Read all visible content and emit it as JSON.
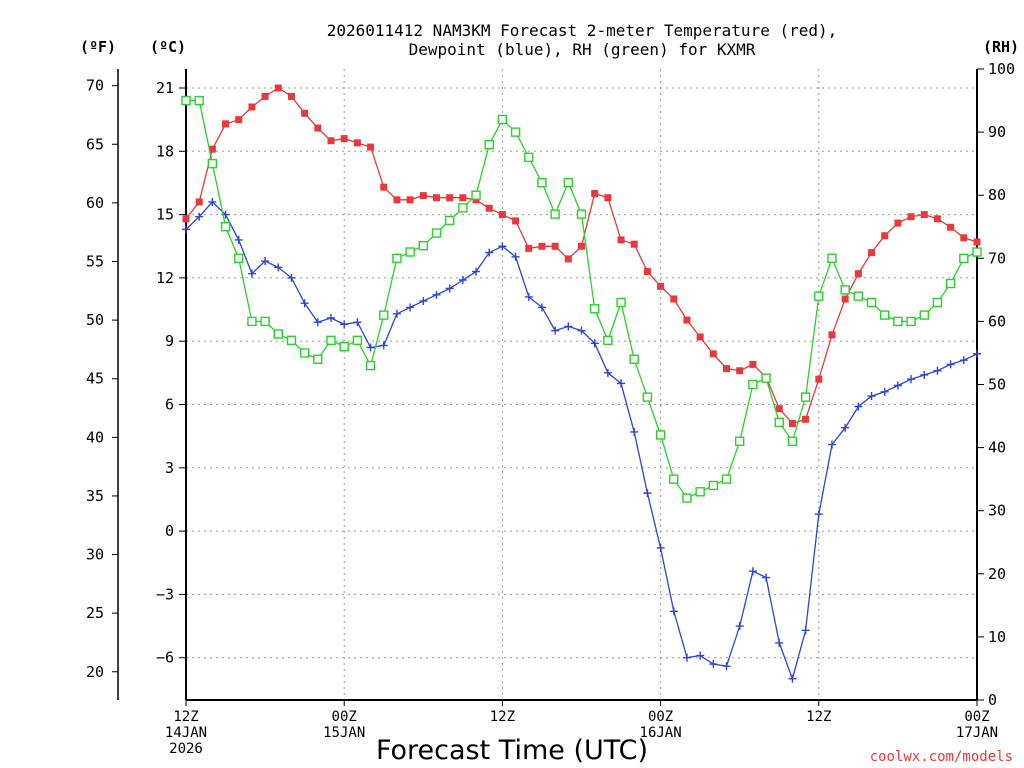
{
  "chart_data": {
    "type": "line",
    "title": "2026011412 NAM3KM Forecast 2-meter Temperature (red),",
    "subtitle": "Dewpoint (blue), RH (green) for KXMR",
    "xlabel": "Forecast Time (UTC)",
    "credit": "coolwx.com/models",
    "units": {
      "fahrenheit": "(ºF)",
      "celsius": "(ºC)",
      "rh": "(RH)"
    },
    "x_range_hours": [
      0,
      60
    ],
    "y_celsius_range": [
      -8,
      22
    ],
    "y_rh_range": [
      0,
      100
    ],
    "y_celsius_ticks": [
      "21",
      "18",
      "15",
      "12",
      "9",
      "6",
      "3",
      "0",
      "−3",
      "−6"
    ],
    "y_fahrenheit_ticks": [
      "70",
      "65",
      "60",
      "55",
      "50",
      "45",
      "40",
      "35",
      "30",
      "25",
      "20"
    ],
    "y_rh_ticks": [
      "100",
      "90",
      "80",
      "70",
      "60",
      "50",
      "40",
      "30",
      "20",
      "10",
      "0"
    ],
    "x_ticks": [
      {
        "hour": 0,
        "lines": [
          "12Z",
          "14JAN",
          "2026"
        ]
      },
      {
        "hour": 12,
        "lines": [
          "00Z",
          "15JAN"
        ]
      },
      {
        "hour": 24,
        "lines": [
          "12Z"
        ]
      },
      {
        "hour": 36,
        "lines": [
          "00Z",
          "16JAN"
        ]
      },
      {
        "hour": 48,
        "lines": [
          "12Z"
        ]
      },
      {
        "hour": 60,
        "lines": [
          "00Z",
          "17JAN"
        ]
      }
    ],
    "series": [
      {
        "name": "2-meter Temperature",
        "color": "#e8383a",
        "marker": "filled-square",
        "values": [
          14.8,
          15.6,
          18.1,
          19.3,
          19.5,
          20.1,
          20.6,
          21.0,
          20.6,
          19.8,
          19.1,
          18.5,
          18.6,
          18.4,
          18.2,
          16.3,
          15.7,
          15.7,
          15.9,
          15.8,
          15.8,
          15.8,
          15.7,
          15.3,
          15.0,
          14.7,
          13.4,
          13.5,
          13.5,
          12.9,
          13.5,
          16.0,
          15.8,
          13.8,
          13.6,
          12.3,
          11.6,
          11.0,
          10.0,
          9.2,
          8.4,
          7.7,
          7.6,
          7.9,
          7.3,
          5.8,
          5.1,
          5.3,
          7.2,
          9.3,
          11.0,
          12.2,
          13.2,
          14.0,
          14.6,
          14.9,
          15.0,
          14.8,
          14.4,
          13.9,
          13.7
        ]
      },
      {
        "name": "Dewpoint",
        "color": "#2b45d8",
        "marker": "plus",
        "values": [
          14.3,
          14.9,
          15.6,
          15.0,
          13.8,
          12.2,
          12.8,
          12.5,
          12.0,
          10.8,
          9.9,
          10.1,
          9.8,
          9.9,
          8.7,
          8.8,
          10.3,
          10.6,
          10.9,
          11.2,
          11.5,
          11.9,
          12.3,
          13.2,
          13.5,
          13.0,
          11.1,
          10.6,
          9.5,
          9.7,
          9.5,
          8.9,
          7.5,
          7.0,
          4.7,
          1.8,
          -0.8,
          -3.8,
          -6.0,
          -5.9,
          -6.3,
          -6.4,
          -4.5,
          -1.9,
          -2.2,
          -5.3,
          -7.0,
          -4.7,
          0.8,
          4.1,
          4.9,
          5.9,
          6.4,
          6.6,
          6.9,
          7.2,
          7.4,
          7.6,
          7.9,
          8.1,
          8.4
        ]
      },
      {
        "name": "RH",
        "color": "#28d228",
        "marker": "open-square",
        "values": [
          95,
          95,
          85,
          75,
          70,
          60,
          60,
          58,
          57,
          55,
          54,
          57,
          56,
          57,
          53,
          61,
          70,
          71,
          72,
          74,
          76,
          78,
          80,
          88,
          92,
          90,
          86,
          82,
          77,
          82,
          77,
          62,
          57,
          63,
          54,
          48,
          42,
          35,
          32,
          33,
          34,
          35,
          41,
          50,
          51,
          44,
          41,
          48,
          64,
          70,
          65,
          64,
          63,
          61,
          60,
          60,
          61,
          63,
          66,
          70,
          71
        ]
      }
    ]
  }
}
